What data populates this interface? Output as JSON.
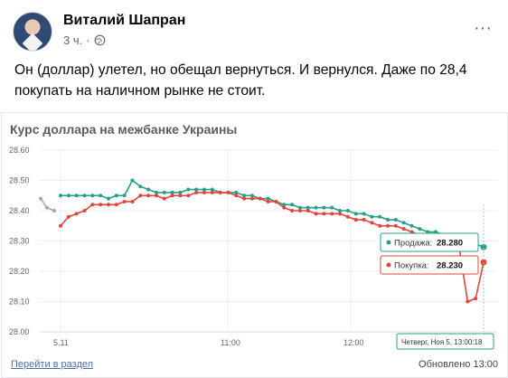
{
  "post": {
    "author": "Виталий Шапран",
    "time": "3 ч.",
    "text": "Он (доллар) улетел, но обещал вернуться. И вернулся. Даже по 28,4 покупать на наличном рынке не стоит.",
    "more_label": "···"
  },
  "embed": {
    "title": "Курс доллара на межбанке Украины",
    "footer_link": "Перейти в раздел",
    "footer_updated": "Обновлено 13:00"
  },
  "chart_data": {
    "type": "line",
    "title": "Курс доллара на межбанке Украины",
    "x_ticks": [
      "5.11",
      "11:00",
      "12:00"
    ],
    "y_ticks": [
      "28.60",
      "28.50",
      "28.40",
      "28.30",
      "28.20",
      "28.10",
      "28.00"
    ],
    "ylim": [
      28.0,
      28.6
    ],
    "grid": true,
    "colors": {
      "sell": "#26a086",
      "buy": "#e2443c",
      "prev": "#a6a6a6"
    },
    "previous_day": [
      28.44,
      28.41,
      28.4
    ],
    "series": [
      {
        "name": "Продажа",
        "values": [
          28.45,
          28.45,
          28.45,
          28.45,
          28.45,
          28.45,
          28.44,
          28.45,
          28.45,
          28.5,
          28.48,
          28.47,
          28.46,
          28.46,
          28.46,
          28.46,
          28.47,
          28.47,
          28.47,
          28.47,
          28.46,
          28.46,
          28.46,
          28.45,
          28.45,
          28.44,
          28.44,
          28.43,
          28.42,
          28.42,
          28.41,
          28.41,
          28.41,
          28.41,
          28.41,
          28.4,
          28.4,
          28.39,
          28.39,
          28.38,
          28.38,
          28.37,
          28.37,
          28.36,
          28.35,
          28.34,
          28.33,
          28.33,
          28.32,
          28.31,
          28.3,
          28.29,
          28.29,
          28.28
        ]
      },
      {
        "name": "Покупка",
        "values": [
          28.35,
          28.38,
          28.39,
          28.4,
          28.42,
          28.42,
          28.42,
          28.42,
          28.43,
          28.43,
          28.45,
          28.45,
          28.45,
          28.44,
          28.45,
          28.45,
          28.45,
          28.46,
          28.46,
          28.46,
          28.46,
          28.46,
          28.45,
          28.44,
          28.44,
          28.44,
          28.43,
          28.43,
          28.41,
          28.4,
          28.4,
          28.4,
          28.39,
          28.39,
          28.39,
          28.39,
          28.38,
          28.37,
          28.37,
          28.36,
          28.35,
          28.35,
          28.35,
          28.34,
          28.33,
          28.32,
          28.31,
          28.3,
          28.29,
          28.28,
          28.27,
          28.1,
          28.11,
          28.23
        ]
      }
    ],
    "tooltip": {
      "sell_label": "Продажа:",
      "sell_value": "28.280",
      "buy_label": "Покупка:",
      "buy_value": "28.230",
      "time_label": "Четверг, Ноя 5, 13:00:18"
    }
  }
}
